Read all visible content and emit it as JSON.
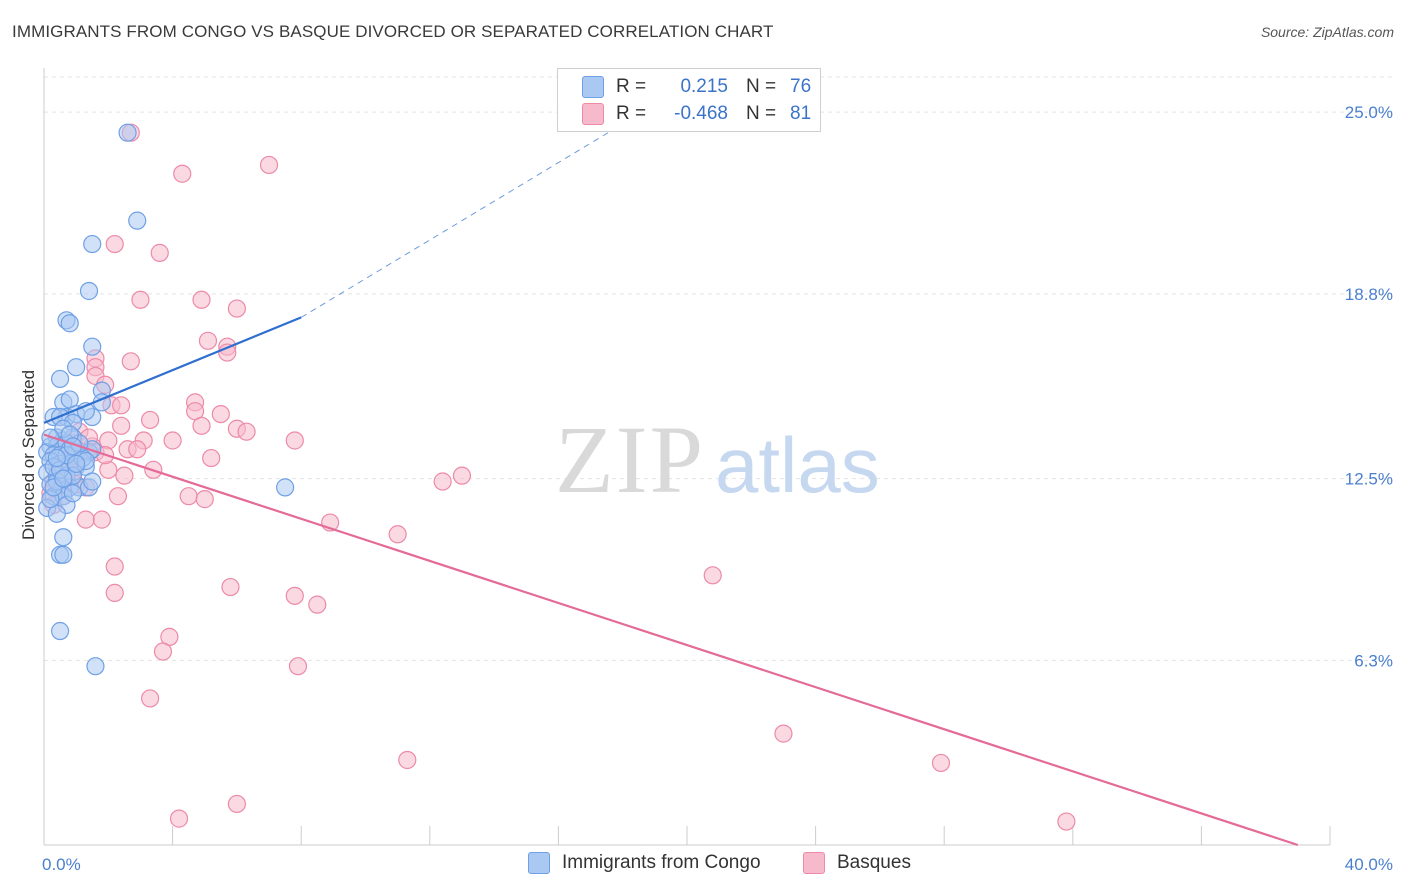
{
  "title": "IMMIGRANTS FROM CONGO VS BASQUE DIVORCED OR SEPARATED CORRELATION CHART",
  "source": "Source: ZipAtlas.com",
  "watermark": {
    "zip": "ZIP",
    "atlas": "atlas"
  },
  "colors": {
    "blue_fill": "#a9c8f2",
    "blue_stroke": "#6fa0e6",
    "blue_line": "#2f6fd0",
    "pink_fill": "#f7b9cc",
    "pink_stroke": "#ec8aa8",
    "pink_line": "#e46a97",
    "grid": "#e3e3e3",
    "tick_text": "#4a7fcf"
  },
  "legend": {
    "rows": [
      {
        "r_label": "R =",
        "r_value": "0.215",
        "n_label": "N =",
        "n_value": "76"
      },
      {
        "r_label": "R =",
        "r_value": "-0.468",
        "n_label": "N =",
        "n_value": "81"
      }
    ]
  },
  "bottom_legend": {
    "series_1": "Immigrants from Congo",
    "series_2": "Basques"
  },
  "chart_data": {
    "type": "scatter",
    "title": "IMMIGRANTS FROM CONGO VS BASQUE DIVORCED OR SEPARATED CORRELATION CHART",
    "xlabel": "",
    "ylabel": "Divorced or Separated",
    "xlim": [
      0,
      40
    ],
    "ylim": [
      0,
      26.2
    ],
    "x_tick_labels": [
      {
        "value": 0,
        "label": "0.0%"
      },
      {
        "value": 40,
        "label": "40.0%"
      }
    ],
    "y_ticks": [
      {
        "value": 6.3,
        "label": "6.3%"
      },
      {
        "value": 12.5,
        "label": "12.5%"
      },
      {
        "value": 18.8,
        "label": "18.8%"
      },
      {
        "value": 25.0,
        "label": "25.0%"
      }
    ],
    "x_minor_ticks": [
      4,
      8,
      12,
      16,
      20,
      24,
      28,
      32,
      36,
      40
    ],
    "grid": true,
    "legend_position": "top-center",
    "series": [
      {
        "name": "Immigrants from Congo",
        "color": "#6fa0e6",
        "trend": {
          "x": [
            0,
            8
          ],
          "y": [
            14.4,
            18.0
          ],
          "dashed_extension_to": [
            18,
            24.6
          ]
        },
        "points": [
          [
            2.6,
            24.3
          ],
          [
            2.9,
            21.3
          ],
          [
            1.5,
            20.5
          ],
          [
            1.4,
            18.9
          ],
          [
            0.7,
            17.9
          ],
          [
            0.8,
            17.8
          ],
          [
            1.5,
            17.0
          ],
          [
            0.5,
            15.9
          ],
          [
            1.0,
            16.3
          ],
          [
            1.8,
            15.5
          ],
          [
            0.6,
            15.1
          ],
          [
            0.8,
            15.2
          ],
          [
            0.7,
            14.6
          ],
          [
            1.0,
            14.7
          ],
          [
            0.3,
            14.6
          ],
          [
            0.5,
            14.6
          ],
          [
            1.5,
            14.6
          ],
          [
            1.3,
            14.8
          ],
          [
            1.8,
            15.1
          ],
          [
            0.9,
            14.4
          ],
          [
            0.4,
            13.9
          ],
          [
            0.6,
            13.8
          ],
          [
            0.9,
            13.9
          ],
          [
            0.2,
            13.6
          ],
          [
            0.4,
            13.6
          ],
          [
            0.7,
            13.7
          ],
          [
            0.1,
            13.4
          ],
          [
            0.3,
            13.3
          ],
          [
            0.5,
            13.3
          ],
          [
            0.8,
            13.5
          ],
          [
            1.0,
            13.4
          ],
          [
            1.4,
            13.4
          ],
          [
            1.5,
            13.5
          ],
          [
            0.2,
            13.1
          ],
          [
            0.5,
            13.0
          ],
          [
            0.8,
            13.0
          ],
          [
            1.0,
            12.9
          ],
          [
            1.3,
            12.9
          ],
          [
            0.1,
            12.7
          ],
          [
            0.4,
            12.6
          ],
          [
            0.7,
            12.6
          ],
          [
            0.2,
            12.3
          ],
          [
            0.5,
            12.1
          ],
          [
            0.8,
            12.2
          ],
          [
            1.1,
            12.2
          ],
          [
            1.4,
            12.2
          ],
          [
            1.5,
            12.4
          ],
          [
            0.3,
            11.9
          ],
          [
            0.6,
            11.9
          ],
          [
            0.7,
            11.6
          ],
          [
            0.1,
            11.5
          ],
          [
            0.4,
            11.3
          ],
          [
            0.2,
            11.8
          ],
          [
            0.6,
            10.5
          ],
          [
            0.5,
            9.9
          ],
          [
            0.6,
            9.9
          ],
          [
            0.5,
            7.3
          ],
          [
            1.6,
            6.1
          ],
          [
            7.5,
            12.2
          ],
          [
            0.9,
            12.6
          ],
          [
            0.3,
            12.9
          ],
          [
            1.2,
            13.2
          ],
          [
            0.6,
            14.2
          ],
          [
            0.9,
            12.0
          ],
          [
            1.1,
            13.7
          ],
          [
            0.4,
            12.4
          ],
          [
            0.2,
            13.9
          ],
          [
            0.8,
            14.0
          ],
          [
            1.3,
            13.1
          ],
          [
            0.5,
            12.8
          ],
          [
            0.7,
            13.3
          ],
          [
            0.3,
            12.2
          ],
          [
            1.0,
            13.0
          ],
          [
            0.6,
            12.5
          ],
          [
            0.4,
            13.2
          ],
          [
            0.9,
            13.6
          ]
        ]
      },
      {
        "name": "Basques",
        "color": "#ec8aa8",
        "trend": {
          "x": [
            0,
            39
          ],
          "y": [
            14.0,
            0.0
          ]
        },
        "points": [
          [
            2.7,
            24.3
          ],
          [
            7.0,
            23.2
          ],
          [
            4.3,
            22.9
          ],
          [
            2.2,
            20.5
          ],
          [
            3.6,
            20.2
          ],
          [
            3.0,
            18.6
          ],
          [
            4.9,
            18.6
          ],
          [
            6.0,
            18.3
          ],
          [
            5.1,
            17.2
          ],
          [
            5.7,
            17.0
          ],
          [
            5.7,
            16.8
          ],
          [
            1.6,
            16.6
          ],
          [
            2.7,
            16.5
          ],
          [
            1.6,
            16.3
          ],
          [
            1.6,
            16.0
          ],
          [
            1.9,
            15.7
          ],
          [
            2.1,
            15.0
          ],
          [
            2.4,
            15.0
          ],
          [
            4.7,
            15.1
          ],
          [
            4.7,
            14.8
          ],
          [
            5.5,
            14.7
          ],
          [
            3.3,
            14.5
          ],
          [
            4.9,
            14.3
          ],
          [
            6.0,
            14.2
          ],
          [
            6.3,
            14.1
          ],
          [
            2.0,
            13.8
          ],
          [
            3.1,
            13.8
          ],
          [
            4.0,
            13.8
          ],
          [
            7.8,
            13.8
          ],
          [
            0.9,
            13.7
          ],
          [
            1.5,
            13.6
          ],
          [
            2.6,
            13.5
          ],
          [
            2.9,
            13.5
          ],
          [
            1.3,
            13.4
          ],
          [
            1.6,
            13.4
          ],
          [
            0.5,
            13.4
          ],
          [
            0.8,
            13.3
          ],
          [
            5.2,
            13.2
          ],
          [
            1.0,
            13.0
          ],
          [
            3.4,
            12.8
          ],
          [
            2.5,
            12.6
          ],
          [
            0.3,
            12.4
          ],
          [
            0.6,
            12.5
          ],
          [
            1.0,
            12.3
          ],
          [
            1.3,
            12.2
          ],
          [
            0.2,
            12.0
          ],
          [
            0.6,
            11.9
          ],
          [
            2.3,
            11.9
          ],
          [
            4.5,
            11.9
          ],
          [
            5.0,
            11.8
          ],
          [
            0.3,
            11.6
          ],
          [
            12.4,
            12.4
          ],
          [
            13.0,
            12.6
          ],
          [
            1.3,
            11.1
          ],
          [
            1.8,
            11.1
          ],
          [
            8.9,
            11.0
          ],
          [
            11.0,
            10.6
          ],
          [
            2.2,
            9.5
          ],
          [
            20.8,
            9.2
          ],
          [
            5.8,
            8.8
          ],
          [
            7.8,
            8.5
          ],
          [
            8.5,
            8.2
          ],
          [
            2.2,
            8.6
          ],
          [
            3.9,
            7.1
          ],
          [
            3.7,
            6.6
          ],
          [
            7.9,
            6.1
          ],
          [
            3.3,
            5.0
          ],
          [
            23.0,
            3.8
          ],
          [
            11.3,
            2.9
          ],
          [
            27.9,
            2.8
          ],
          [
            6.0,
            1.4
          ],
          [
            4.2,
            0.9
          ],
          [
            31.8,
            0.8
          ],
          [
            0.4,
            12.9
          ],
          [
            1.1,
            14.1
          ],
          [
            2.0,
            12.8
          ],
          [
            0.7,
            13.1
          ],
          [
            1.9,
            13.3
          ],
          [
            2.4,
            14.3
          ],
          [
            0.9,
            12.7
          ],
          [
            1.4,
            13.9
          ]
        ]
      }
    ]
  }
}
